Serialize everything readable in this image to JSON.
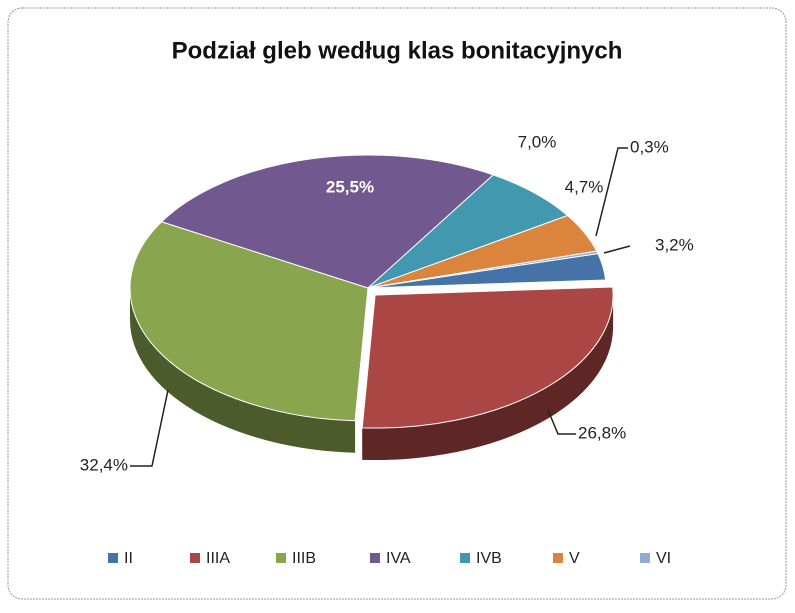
{
  "chart_data": {
    "type": "pie",
    "title": "Podział gleb według klas bonitacyjnych",
    "categories": [
      "II",
      "IIIA",
      "IIIB",
      "IVA",
      "IVB",
      "V",
      "VI"
    ],
    "values": [
      3.2,
      26.8,
      32.4,
      25.5,
      7.0,
      4.7,
      0.3
    ],
    "value_labels": [
      "3,2%",
      "26,8%",
      "32,4%",
      "25,5%",
      "7,0%",
      "4,7%",
      "0,3%"
    ],
    "colors": [
      "#4572a7",
      "#aa4643",
      "#89a54e",
      "#71588f",
      "#4198af",
      "#db843d",
      "#93a9cf"
    ],
    "legend": "bottom"
  }
}
